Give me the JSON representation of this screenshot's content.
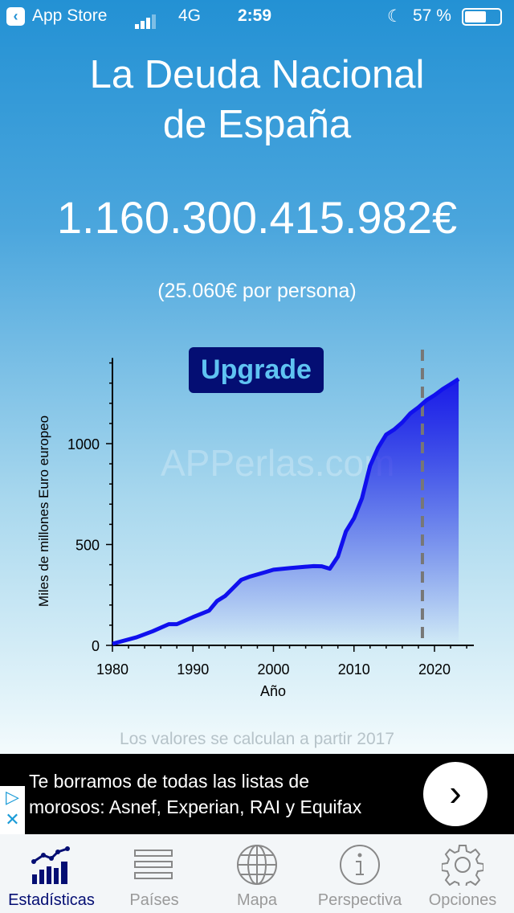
{
  "status": {
    "back_label": "App Store",
    "network": "4G",
    "time": "2:59",
    "battery": "57 %"
  },
  "title": [
    "La Deuda Nacional",
    "de España"
  ],
  "amount": "1.160.300.415.982€",
  "per_person": "(25.060€ por persona)",
  "upgrade_label": "Upgrade",
  "watermark": "APPerlas.com",
  "note": "Los valores se calculan a partir 2017",
  "ad": {
    "line1": "Te borramos de todas las listas de",
    "line2": "morosos: Asnef, Experian, RAI y Equifax"
  },
  "tabs": [
    {
      "label": "Estadísticas",
      "active": true
    },
    {
      "label": "Países"
    },
    {
      "label": "Mapa"
    },
    {
      "label": "Perspectiva"
    },
    {
      "label": "Opciones"
    }
  ],
  "chart_data": {
    "type": "area",
    "xlabel": "Año",
    "ylabel": "Miles de millones Euro europeo",
    "xlim": [
      1980,
      2025
    ],
    "ylim": [
      0,
      1425
    ],
    "xticks": [
      "1980",
      "1990",
      "2000",
      "2010",
      "2020"
    ],
    "yticks": [
      "0",
      "500",
      "1000"
    ],
    "projection_start": 2018.5,
    "line_color": "#1010ee",
    "x": [
      1980,
      1983,
      1985,
      1987,
      1988,
      1990,
      1992,
      1993,
      1994,
      1995,
      1996,
      1997,
      1999,
      2000,
      2002,
      2004,
      2005,
      2006,
      2007,
      2008,
      2009,
      2010,
      2011,
      2012,
      2013,
      2014,
      2015,
      2016,
      2017,
      2018,
      2019,
      2020,
      2021,
      2022,
      2023
    ],
    "y": [
      8,
      40,
      70,
      105,
      105,
      140,
      172,
      220,
      245,
      285,
      325,
      340,
      363,
      375,
      383,
      390,
      393,
      392,
      380,
      440,
      565,
      630,
      730,
      890,
      980,
      1045,
      1070,
      1105,
      1150,
      1180,
      1215,
      1240,
      1270,
      1295,
      1320
    ]
  }
}
